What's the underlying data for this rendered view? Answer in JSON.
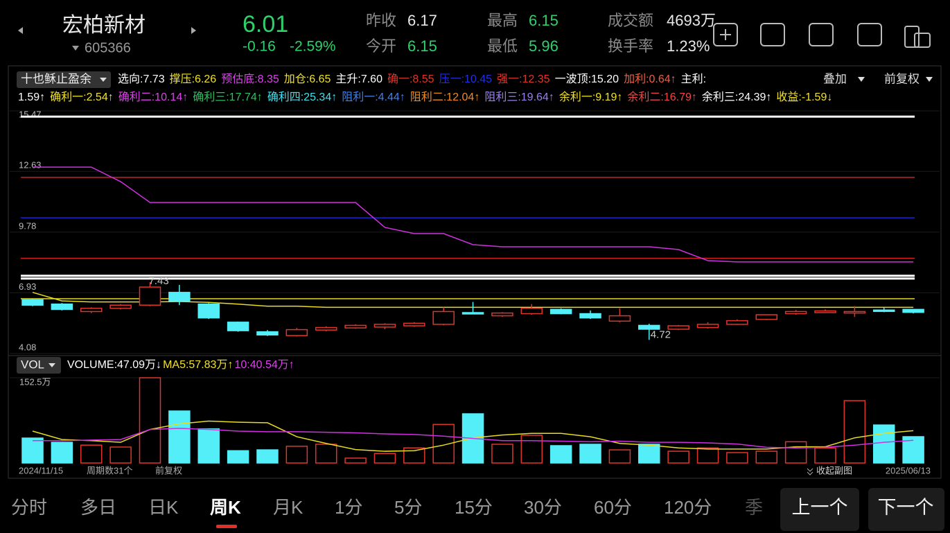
{
  "header": {
    "name": "宏柏新材",
    "code": "605366",
    "price": "6.01",
    "change": "-0.16",
    "change_pct": "-2.59%",
    "stats": [
      {
        "label": "昨收",
        "value": "6.17",
        "color": "#e8e8e8"
      },
      {
        "label": "今开",
        "value": "6.15",
        "color": "#2ed16a"
      },
      {
        "label": "最高",
        "value": "6.15",
        "color": "#2ed16a"
      },
      {
        "label": "最低",
        "value": "5.96",
        "color": "#2ed16a"
      },
      {
        "label": "成交额",
        "value": "4693万",
        "color": "#e8e8e8"
      },
      {
        "label": "换手率",
        "value": "1.23%",
        "color": "#e8e8e8"
      }
    ]
  },
  "indicator": {
    "name": "十也稣止盈余",
    "overlay": "叠加",
    "adjust": "前复权",
    "row1": [
      {
        "text": "选向:7.73",
        "color": "#ffffff"
      },
      {
        "text": "撑压:6.26",
        "color": "#f2e227"
      },
      {
        "text": "预估底:8.35",
        "color": "#e040f0"
      },
      {
        "text": "加仓:6.65",
        "color": "#f2e227"
      },
      {
        "text": "主升:7.60",
        "color": "#ffffff"
      },
      {
        "text": "确一:8.55",
        "color": "#e0352b"
      },
      {
        "text": "压一:10.45",
        "color": "#2030e0"
      },
      {
        "text": "强一:12.35",
        "color": "#e0352b"
      },
      {
        "text": "一波顶:15.20",
        "color": "#ffffff"
      },
      {
        "text": "加利:0.64↑",
        "color": "#f06040"
      },
      {
        "text": "主利:",
        "color": "#ffffff"
      }
    ],
    "row2": [
      {
        "text": "1.59↑",
        "color": "#ffffff"
      },
      {
        "text": "确利一:2.54↑",
        "color": "#f2e227"
      },
      {
        "text": "确利二:10.14↑",
        "color": "#e040f0"
      },
      {
        "text": "确利三:17.74↑",
        "color": "#30c060"
      },
      {
        "text": "确利四:25.34↑",
        "color": "#40e0f0"
      },
      {
        "text": "阻利一:4.44↑",
        "color": "#4080f0"
      },
      {
        "text": "阻利二:12.04↑",
        "color": "#f08a20"
      },
      {
        "text": "阻利三:19.64↑",
        "color": "#9a80f0"
      },
      {
        "text": "余利一:9.19↑",
        "color": "#f2e227"
      },
      {
        "text": "余利二:16.79↑",
        "color": "#f04848"
      },
      {
        "text": "余利三:24.39↑",
        "color": "#ffffff"
      },
      {
        "text": "收益:-1.59↓",
        "color": "#f2e227"
      }
    ]
  },
  "kline": {
    "ylim": [
      4.08,
      15.47
    ],
    "yticks": [
      15.47,
      12.63,
      9.78,
      6.93,
      4.08
    ],
    "candles": [
      {
        "open": 6.6,
        "close": 6.35,
        "high": 6.65,
        "low": 6.3
      },
      {
        "open": 6.4,
        "close": 6.15,
        "high": 6.45,
        "low": 6.1
      },
      {
        "open": 6.05,
        "close": 6.2,
        "high": 6.25,
        "low": 5.98
      },
      {
        "open": 6.2,
        "close": 6.35,
        "high": 6.4,
        "low": 6.15
      },
      {
        "open": 6.35,
        "close": 7.2,
        "high": 7.43,
        "low": 6.3
      },
      {
        "open": 6.95,
        "close": 6.55,
        "high": 7.3,
        "low": 6.35
      },
      {
        "open": 6.4,
        "close": 5.75,
        "high": 6.45,
        "low": 5.7
      },
      {
        "open": 5.55,
        "close": 5.15,
        "high": 5.58,
        "low": 5.1
      },
      {
        "open": 5.1,
        "close": 4.95,
        "high": 5.18,
        "low": 4.9
      },
      {
        "open": 4.92,
        "close": 5.2,
        "high": 5.28,
        "low": 4.88
      },
      {
        "open": 5.18,
        "close": 5.3,
        "high": 5.35,
        "low": 5.12
      },
      {
        "open": 5.28,
        "close": 5.4,
        "high": 5.45,
        "low": 5.24
      },
      {
        "open": 5.32,
        "close": 5.45,
        "high": 5.5,
        "low": 5.22
      },
      {
        "open": 5.38,
        "close": 5.5,
        "high": 5.55,
        "low": 5.33
      },
      {
        "open": 5.45,
        "close": 6.05,
        "high": 6.25,
        "low": 5.4
      },
      {
        "open": 6.0,
        "close": 5.95,
        "high": 6.5,
        "low": 5.92
      },
      {
        "open": 5.85,
        "close": 5.98,
        "high": 6.02,
        "low": 5.8
      },
      {
        "open": 5.95,
        "close": 6.2,
        "high": 6.4,
        "low": 5.9
      },
      {
        "open": 6.15,
        "close": 5.95,
        "high": 6.2,
        "low": 5.92
      },
      {
        "open": 5.95,
        "close": 5.75,
        "high": 6.1,
        "low": 5.7
      },
      {
        "open": 5.6,
        "close": 5.85,
        "high": 6.2,
        "low": 5.55
      },
      {
        "open": 5.4,
        "close": 5.22,
        "high": 5.48,
        "low": 4.72
      },
      {
        "open": 5.22,
        "close": 5.38,
        "high": 5.42,
        "low": 5.18
      },
      {
        "open": 5.3,
        "close": 5.45,
        "high": 5.55,
        "low": 5.25
      },
      {
        "open": 5.45,
        "close": 5.62,
        "high": 5.68,
        "low": 5.42
      },
      {
        "open": 5.68,
        "close": 5.9,
        "high": 5.92,
        "low": 5.65
      },
      {
        "open": 5.95,
        "close": 6.05,
        "high": 6.12,
        "low": 5.9
      },
      {
        "open": 6.0,
        "close": 6.08,
        "high": 6.15,
        "low": 5.98
      },
      {
        "open": 5.98,
        "close": 6.05,
        "high": 6.3,
        "low": 5.8
      },
      {
        "open": 6.12,
        "close": 6.08,
        "high": 6.25,
        "low": 6.02
      },
      {
        "open": 6.15,
        "close": 6.01,
        "high": 6.15,
        "low": 5.96
      }
    ],
    "levels": [
      {
        "value": 15.2,
        "color": "#ffffff"
      },
      {
        "value": 12.35,
        "color": "#d02020"
      },
      {
        "value": 10.45,
        "color": "#1a24c8"
      },
      {
        "value": 8.55,
        "color": "#d02020"
      },
      {
        "value": 7.73,
        "color": "#ffffff"
      },
      {
        "value": 7.6,
        "color": "#ffffff"
      },
      {
        "value": 6.65,
        "color": "#e8dc20"
      }
    ],
    "lines": [
      {
        "color": "#d030e0",
        "values": [
          12.83,
          12.83,
          12.83,
          12.15,
          11.17,
          11.17,
          11.17,
          11.17,
          11.17,
          11.17,
          11.17,
          11.17,
          10.0,
          9.71,
          9.71,
          9.19,
          9.09,
          9.09,
          9.09,
          9.09,
          9.09,
          9.09,
          8.96,
          8.44,
          8.38,
          8.38,
          8.38,
          8.38,
          8.38,
          8.38,
          8.38
        ]
      },
      {
        "color": "#e8dc20",
        "values": [
          6.95,
          6.55,
          6.5,
          6.5,
          6.5,
          6.52,
          6.48,
          6.4,
          6.3,
          6.3,
          6.25,
          6.25,
          6.25,
          6.25,
          6.25,
          6.25,
          6.25,
          6.25,
          6.25,
          6.25,
          6.25,
          6.25,
          6.25,
          6.25,
          6.25,
          6.25,
          6.25,
          6.25,
          6.25,
          6.25,
          6.25
        ]
      }
    ],
    "annotations": [
      {
        "text": "7.43",
        "index": 4
      },
      {
        "text": "4.72",
        "index": 21
      }
    ]
  },
  "volume": {
    "name": "VOL",
    "labels": [
      {
        "text": "VOLUME:47.09万↓",
        "color": "#ffffff"
      },
      {
        "text": "MA5:57.83万↑",
        "color": "#f2e227"
      },
      {
        "text": "10:40.54万↑",
        "color": "#e040f0"
      }
    ],
    "ylim": [
      0,
      152.5
    ],
    "yticks": [
      {
        "value": 152.5,
        "label": "152.5万"
      }
    ],
    "values": [
      44.6,
      37,
      32,
      28.5,
      152.5,
      93,
      61,
      22,
      23.5,
      30,
      33.5,
      8.7,
      17,
      27,
      69,
      88,
      33.5,
      49.6,
      31,
      33.5,
      23.5,
      33.5,
      21,
      27,
      18.6,
      21,
      38,
      27,
      111.5,
      68,
      47.09
    ],
    "lines": [
      {
        "color": "#e8dc20",
        "values": [
          57,
          42,
          40,
          37,
          60,
          70,
          75,
          73,
          72,
          47,
          35,
          24,
          21,
          22,
          32,
          45,
          50,
          53,
          53,
          47,
          35,
          32,
          27,
          25,
          25,
          25,
          29,
          29,
          45,
          53,
          57.83
        ]
      },
      {
        "color": "#d030e0",
        "values": [
          40,
          40,
          41,
          42,
          60,
          62,
          60,
          57,
          56,
          56,
          55,
          54,
          52,
          51,
          48,
          44,
          40,
          40,
          39,
          38,
          39,
          37,
          37,
          36,
          34,
          28,
          27,
          28,
          32,
          37,
          40.54
        ]
      }
    ]
  },
  "footer": {
    "start_date": "2024/11/15",
    "period_count": "周期数31个",
    "adjust": "前复权",
    "collapse": "收起副图",
    "end_date": "2025/06/13"
  },
  "tabs": [
    "分时",
    "多日",
    "日K",
    "周K",
    "月K",
    "1分",
    "5分",
    "15分",
    "30分",
    "60分",
    "120分",
    "季"
  ],
  "buttons": [
    "上一个",
    "下一个"
  ]
}
